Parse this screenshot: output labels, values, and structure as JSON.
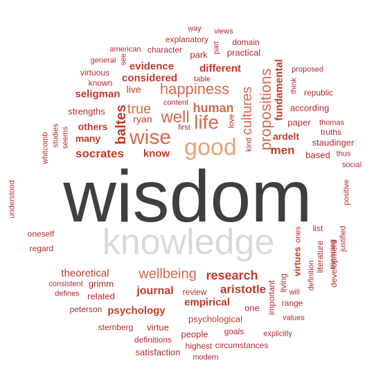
{
  "word_cloud": {
    "palette": {
      "dark": "#3f3f3f",
      "light_gray": "#d9d9d9",
      "peach": "#e8a27c",
      "salmon": "#d6694f",
      "red": "#c0392b",
      "crimson": "#b22a2e",
      "deep_red": "#9e1b24"
    },
    "words": [
      {
        "text": "wisdom",
        "color": "dark"
      },
      {
        "text": "knowledge",
        "color": "light_gray"
      },
      {
        "text": "good",
        "color": "peach"
      },
      {
        "text": "wise",
        "color": "salmon"
      },
      {
        "text": "life",
        "color": "salmon"
      },
      {
        "text": "happiness",
        "color": "salmon"
      },
      {
        "text": "well",
        "color": "salmon"
      },
      {
        "text": "wellbeing",
        "color": "salmon"
      },
      {
        "text": "propositions",
        "color": "salmon"
      },
      {
        "text": "true",
        "color": "salmon"
      },
      {
        "text": "cultures",
        "color": "salmon"
      },
      {
        "text": "human",
        "color": "salmon"
      },
      {
        "text": "research",
        "color": "red"
      },
      {
        "text": "baltes",
        "color": "red"
      },
      {
        "text": "socrates",
        "color": "red"
      },
      {
        "text": "men",
        "color": "red"
      },
      {
        "text": "aristotle",
        "color": "red"
      },
      {
        "text": "journal",
        "color": "red"
      },
      {
        "text": "empirical",
        "color": "red"
      },
      {
        "text": "psychology",
        "color": "red"
      },
      {
        "text": "different",
        "color": "red"
      },
      {
        "text": "evidence",
        "color": "red"
      },
      {
        "text": "considered",
        "color": "red"
      },
      {
        "text": "fundamental",
        "color": "red"
      },
      {
        "text": "ardelt",
        "color": "red"
      },
      {
        "text": "many",
        "color": "red"
      },
      {
        "text": "others",
        "color": "red"
      },
      {
        "text": "know",
        "color": "red"
      },
      {
        "text": "seligman",
        "color": "red"
      },
      {
        "text": "theoretical",
        "color": "red"
      },
      {
        "text": "psychological",
        "color": "red"
      },
      {
        "text": "virtues",
        "color": "red"
      },
      {
        "text": "live",
        "color": "red"
      },
      {
        "text": "ryan",
        "color": "red"
      },
      {
        "text": "strengths",
        "color": "crimson"
      },
      {
        "text": "according",
        "color": "crimson"
      },
      {
        "text": "paper",
        "color": "crimson"
      },
      {
        "text": "staudinger",
        "color": "crimson"
      },
      {
        "text": "based",
        "color": "crimson"
      },
      {
        "text": "truths",
        "color": "crimson"
      },
      {
        "text": "thomas",
        "color": "crimson"
      },
      {
        "text": "thus",
        "color": "crimson"
      },
      {
        "text": "republic",
        "color": "crimson"
      },
      {
        "text": "proposed",
        "color": "crimson"
      },
      {
        "text": "think",
        "color": "crimson"
      },
      {
        "text": "social",
        "color": "crimson"
      },
      {
        "text": "positive",
        "color": "crimson"
      },
      {
        "text": "list",
        "color": "crimson"
      },
      {
        "text": "ones",
        "color": "crimson"
      },
      {
        "text": "literature",
        "color": "crimson"
      },
      {
        "text": "meaning",
        "color": "crimson"
      },
      {
        "text": "justified",
        "color": "crimson"
      },
      {
        "text": "development",
        "color": "crimson"
      },
      {
        "text": "definition",
        "color": "crimson"
      },
      {
        "text": "living",
        "color": "crimson"
      },
      {
        "text": "important",
        "color": "crimson"
      },
      {
        "text": "will",
        "color": "crimson"
      },
      {
        "text": "range",
        "color": "crimson"
      },
      {
        "text": "values",
        "color": "crimson"
      },
      {
        "text": "explicitly",
        "color": "crimson"
      },
      {
        "text": "one",
        "color": "crimson"
      },
      {
        "text": "goals",
        "color": "crimson"
      },
      {
        "text": "circumstances",
        "color": "crimson"
      },
      {
        "text": "review",
        "color": "crimson"
      },
      {
        "text": "people",
        "color": "crimson"
      },
      {
        "text": "highest",
        "color": "crimson"
      },
      {
        "text": "modern",
        "color": "crimson"
      },
      {
        "text": "satisfaction",
        "color": "crimson"
      },
      {
        "text": "definitions",
        "color": "crimson"
      },
      {
        "text": "virtue",
        "color": "crimson"
      },
      {
        "text": "sternberg",
        "color": "crimson"
      },
      {
        "text": "peterson",
        "color": "crimson"
      },
      {
        "text": "related",
        "color": "crimson"
      },
      {
        "text": "grimm",
        "color": "crimson"
      },
      {
        "text": "defines",
        "color": "crimson"
      },
      {
        "text": "consistent",
        "color": "crimson"
      },
      {
        "text": "regard",
        "color": "crimson"
      },
      {
        "text": "oneself",
        "color": "crimson"
      },
      {
        "text": "understood",
        "color": "crimson"
      },
      {
        "text": "whitcomb",
        "color": "crimson"
      },
      {
        "text": "studies",
        "color": "crimson"
      },
      {
        "text": "seems",
        "color": "crimson"
      },
      {
        "text": "virtuous",
        "color": "crimson"
      },
      {
        "text": "known",
        "color": "crimson"
      },
      {
        "text": "general",
        "color": "crimson"
      },
      {
        "text": "american",
        "color": "crimson"
      },
      {
        "text": "see",
        "color": "crimson"
      },
      {
        "text": "character",
        "color": "crimson"
      },
      {
        "text": "explanatory",
        "color": "crimson"
      },
      {
        "text": "way",
        "color": "crimson"
      },
      {
        "text": "views",
        "color": "crimson"
      },
      {
        "text": "part",
        "color": "crimson"
      },
      {
        "text": "domain",
        "color": "crimson"
      },
      {
        "text": "practical",
        "color": "crimson"
      },
      {
        "text": "park",
        "color": "crimson"
      },
      {
        "text": "table",
        "color": "crimson"
      },
      {
        "text": "content",
        "color": "crimson"
      },
      {
        "text": "first",
        "color": "crimson"
      },
      {
        "text": "love",
        "color": "crimson"
      },
      {
        "text": "kind",
        "color": "crimson"
      }
    ]
  }
}
